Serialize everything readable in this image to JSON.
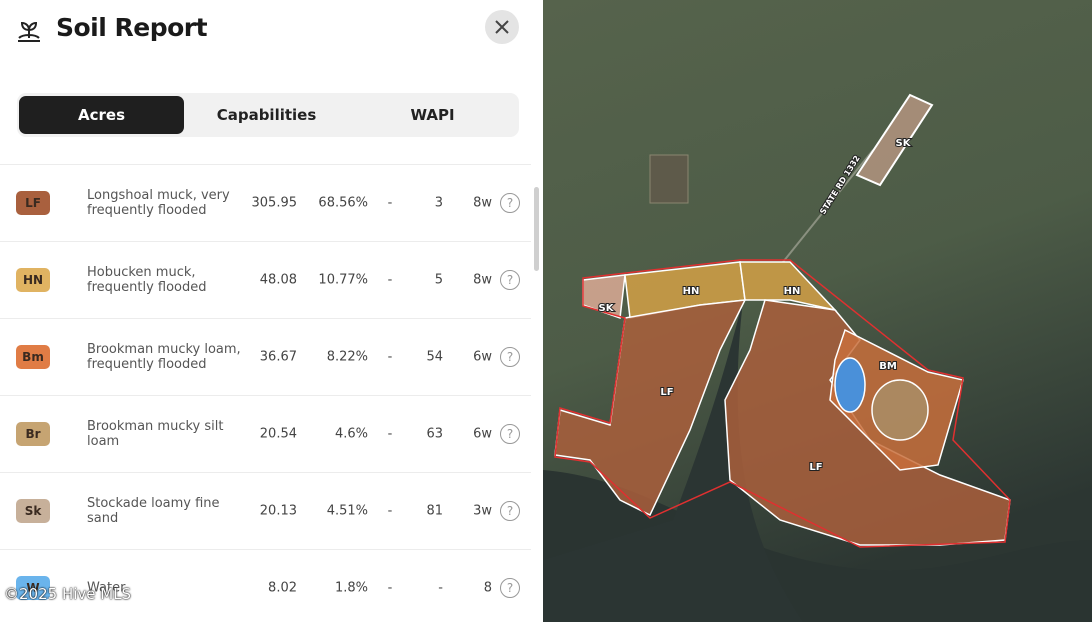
{
  "header": {
    "title": "Soil Report"
  },
  "tabs": [
    "Acres",
    "Capabilities",
    "WAPI"
  ],
  "table": {
    "rows": [
      [
        "LF",
        "Longshoal muck, very frequently flooded",
        "305.95",
        "68.56%",
        "-",
        "3",
        "8w"
      ],
      [
        "HN",
        "Hobucken muck, frequently flooded",
        "48.08",
        "10.77%",
        "-",
        "5",
        "8w"
      ],
      [
        "Bm",
        "Brookman mucky loam, frequently flooded",
        "36.67",
        "8.22%",
        "-",
        "54",
        "6w"
      ],
      [
        "Br",
        "Brookman mucky silt loam",
        "20.54",
        "4.6%",
        "-",
        "63",
        "6w"
      ],
      [
        "Sk",
        "Stockade loamy fine sand",
        "20.13",
        "4.51%",
        "-",
        "81",
        "3w"
      ],
      [
        "W",
        "Water",
        "8.02",
        "1.8%",
        "-",
        "-",
        "8"
      ]
    ]
  },
  "map": {
    "labels": [
      "SK",
      "HN",
      "HN",
      "SK",
      "LF",
      "LF",
      "BM"
    ],
    "road": "STATE RD 1332"
  },
  "watermark": "©2025 Hive MLS"
}
